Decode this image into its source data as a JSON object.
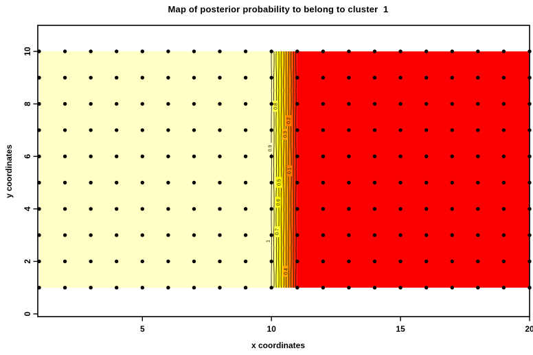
{
  "title": "Map of posterior probability to belong to cluster  1",
  "x_axis": {
    "label": "x coordinates",
    "tick_values": [
      5,
      10,
      15,
      20
    ]
  },
  "y_axis": {
    "label": "y coordinates",
    "tick_values": [
      0,
      2,
      4,
      6,
      8,
      10
    ]
  },
  "colors": {
    "background": "#FFFFFF",
    "box": "#000000",
    "point": "#000000",
    "high_region": "#FFFFC6",
    "low_region": "#FB0000",
    "contour_line": "#201500"
  },
  "chart_data": {
    "type": "heatmap",
    "title": "Map of posterior probability to belong to cluster  1",
    "xlabel": "x coordinates",
    "ylabel": "y coordinates",
    "x_domain": [
      1,
      20
    ],
    "y_domain": [
      1,
      10
    ],
    "axis_x_range": [
      0.947,
      20.0
    ],
    "axis_y_range": [
      -0.104,
      10.992
    ],
    "x_ticks": [
      5,
      10,
      15,
      20
    ],
    "y_ticks": [
      0,
      2,
      4,
      6,
      8,
      10
    ],
    "grid": false,
    "legend": "none",
    "description": "Posterior probability of belonging to cluster 1 over the (x,y) plane: probability 1 (pale cream) for x in [1,10], linear transition from 1 to 0 across x in [10,11] shown with heat-color contour bands, probability 0 (red) for x in [11,20]. Black sample points on integer grid.",
    "regions": [
      {
        "name": "high-probability",
        "x": [
          1,
          10
        ],
        "y": [
          1,
          10
        ],
        "value": 1,
        "color": "#FFFFC6"
      },
      {
        "name": "transition",
        "x": [
          10,
          11
        ],
        "y": [
          1,
          10
        ],
        "value_from": 1,
        "value_to": 0,
        "colors": [
          "#FFFFC6",
          "#FFFF8C",
          "#FFFF3E",
          "#FFF800",
          "#FFE000",
          "#FFC300",
          "#FFA300",
          "#FF8000",
          "#FF5500",
          "#FF2A00",
          "#FB0000"
        ]
      },
      {
        "name": "low-probability",
        "x": [
          11,
          20
        ],
        "y": [
          1,
          10
        ],
        "value": 0,
        "color": "#FB0000"
      }
    ],
    "contours": {
      "levels": [
        1,
        0.9,
        0.8,
        0.7,
        0.6,
        0.5,
        0.4,
        0.3,
        0.2,
        0.1,
        0
      ],
      "band_x_start": 10.0,
      "band_x_end": 10.95,
      "labels": [
        {
          "text": "1",
          "x": 9.86,
          "y": 2.77
        },
        {
          "text": "0.9",
          "x": 9.94,
          "y": 6.31
        },
        {
          "text": "0.8",
          "x": 10.16,
          "y": 7.91
        },
        {
          "text": "0.7",
          "x": 10.21,
          "y": 3.13
        },
        {
          "text": "0.6",
          "x": 10.26,
          "y": 4.25
        },
        {
          "text": "0.5",
          "x": 10.29,
          "y": 5.01
        },
        {
          "text": "0.4",
          "x": 10.55,
          "y": 1.62
        },
        {
          "text": "0.3",
          "x": 10.53,
          "y": 6.84
        },
        {
          "text": "0.2",
          "x": 10.66,
          "y": 7.36
        },
        {
          "text": "0.1",
          "x": 10.69,
          "y": 5.45
        }
      ]
    },
    "sample_points": {
      "x_start": 1,
      "x_end": 20,
      "x_step": 1,
      "y_start": 1,
      "y_end": 10,
      "y_step": 1,
      "radius_px": 2.7,
      "color": "#000000"
    }
  }
}
